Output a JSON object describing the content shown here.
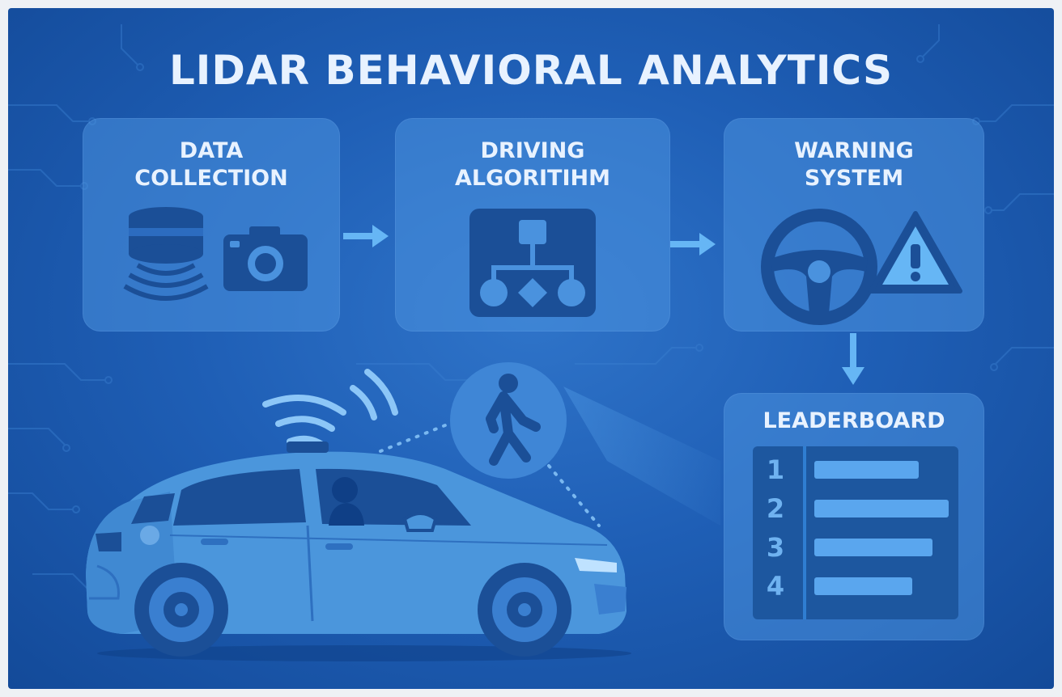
{
  "title": "LIDAR BEHAVIORAL ANALYTICS",
  "colors": {
    "background": "#1f5fb6",
    "card": "#4a92de",
    "accent": "#66b6f5",
    "text": "#e8f2ff",
    "car": "#4b96dc"
  },
  "stages": [
    {
      "label": "DATA\nCOLLECTION",
      "icons": [
        "lidar-sensor-icon",
        "camera-icon"
      ]
    },
    {
      "label": "DRIVING\nALGORITIHM",
      "icons": [
        "flowchart-icon"
      ]
    },
    {
      "label": "WARNING\nSYSTEM",
      "icons": [
        "steering-wheel-icon",
        "warning-triangle-icon"
      ]
    }
  ],
  "leaderboard": {
    "label": "LEADERBOARD",
    "ranks": [
      "1",
      "2",
      "3",
      "4"
    ],
    "bar_levels": [
      0.78,
      1.0,
      0.88,
      0.73
    ]
  },
  "scene": {
    "icons": [
      "car-icon",
      "driver-icon",
      "lidar-waves-icon",
      "pedestrian-icon"
    ]
  }
}
